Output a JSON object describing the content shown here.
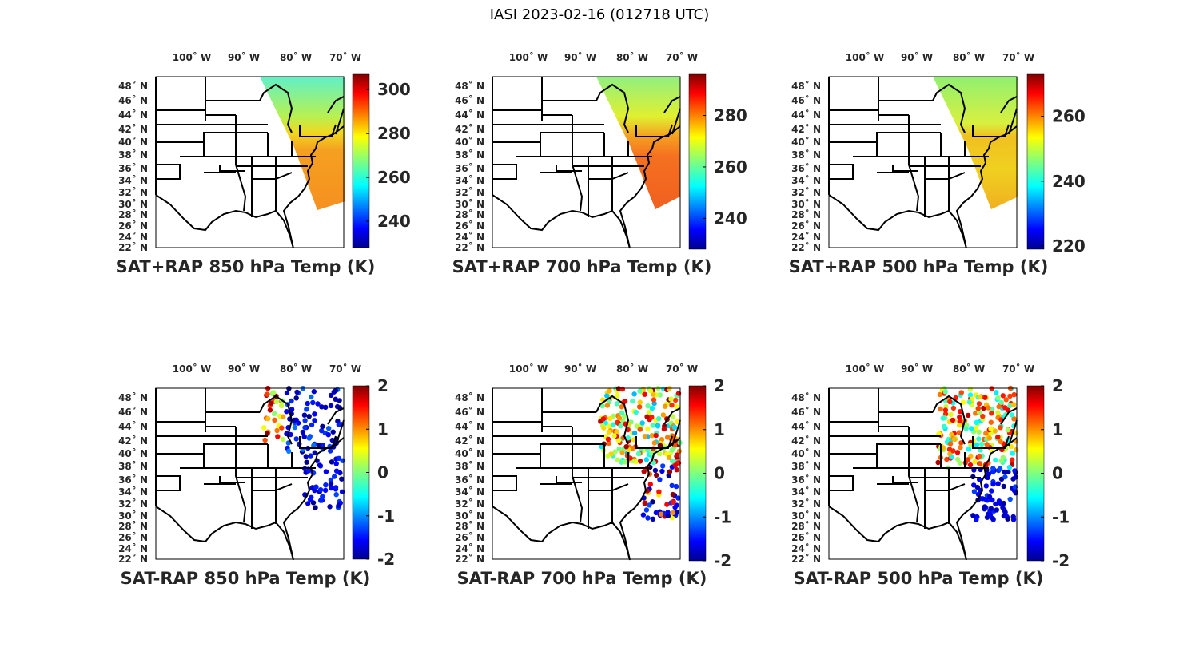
{
  "figure_title": "IASI 2023-02-16 (012718 UTC)",
  "lon_labels": [
    "100˚ W",
    "90˚ W",
    "80˚ W",
    "70˚ W"
  ],
  "lat_labels": [
    "48˚ N",
    "46˚ N",
    "44˚ N",
    "42˚ N",
    "40˚ N",
    "38˚ N",
    "36˚ N",
    "34˚ N",
    "32˚ N",
    "30˚ N",
    "28˚ N",
    "26˚ N",
    "24˚ N",
    "22˚ N"
  ],
  "colormap": "jet",
  "chart_data": [
    {
      "type": "heatmap",
      "title": "SAT+RAP 850 hPa Temp (K)",
      "colorbar": {
        "range": [
          228,
          307
        ],
        "ticks": [
          "300",
          "280",
          "260",
          "240"
        ],
        "tick_values": [
          300,
          280,
          260,
          240
        ]
      },
      "field": "sum"
    },
    {
      "type": "heatmap",
      "title": "SAT+RAP 700 hPa Temp (K)",
      "colorbar": {
        "range": [
          228,
          296
        ],
        "ticks": [
          "280",
          "260",
          "240"
        ],
        "tick_values": [
          280,
          260,
          240
        ]
      },
      "field": "sum"
    },
    {
      "type": "heatmap",
      "title": "SAT+RAP 500 hPa Temp (K)",
      "colorbar": {
        "range": [
          219,
          273
        ],
        "ticks": [
          "260",
          "240",
          "220"
        ],
        "tick_values": [
          260,
          240,
          220
        ]
      },
      "field": "sum"
    },
    {
      "type": "scatter",
      "title": "SAT-RAP 850 hPa Temp (K)",
      "colorbar": {
        "range": [
          -2,
          2
        ],
        "ticks": [
          "2",
          "1",
          "0",
          "-1",
          "-2"
        ],
        "tick_values": [
          2,
          1,
          0,
          -1,
          -2
        ]
      },
      "field": "diff"
    },
    {
      "type": "scatter",
      "title": "SAT-RAP 700 hPa Temp (K)",
      "colorbar": {
        "range": [
          -2,
          2
        ],
        "ticks": [
          "2",
          "1",
          "0",
          "-1",
          "-2"
        ],
        "tick_values": [
          2,
          1,
          0,
          -1,
          -2
        ]
      },
      "field": "diff"
    },
    {
      "type": "scatter",
      "title": "SAT-RAP 500 hPa Temp (K)",
      "colorbar": {
        "range": [
          -2,
          2
        ],
        "ticks": [
          "2",
          "1",
          "0",
          "-1",
          "-2"
        ],
        "tick_values": [
          2,
          1,
          0,
          -1,
          -2
        ]
      },
      "field": "diff"
    }
  ]
}
